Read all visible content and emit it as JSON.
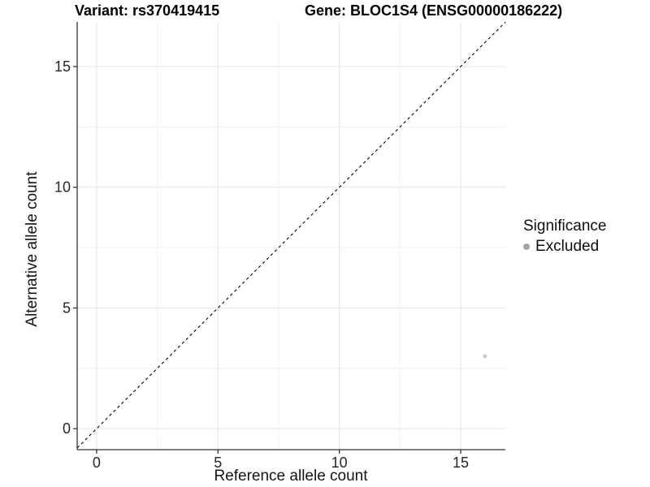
{
  "chart_data": {
    "type": "scatter",
    "title_variant": "Variant: rs370419415",
    "title_gene": "Gene: BLOC1S4 (ENSG00000186222)",
    "xlabel": "Reference allele count",
    "ylabel": "Alternative allele count",
    "xlim": [
      -0.8,
      16.84
    ],
    "ylim": [
      -0.87,
      16.85
    ],
    "x_ticks": [
      0,
      5,
      10,
      15
    ],
    "y_ticks": [
      0,
      5,
      10,
      15
    ],
    "x_minor_ticks": [
      2.5,
      7.5,
      12.5
    ],
    "y_minor_ticks": [
      2.5,
      7.5,
      12.5
    ],
    "grid": "major+minor",
    "identity_line": {
      "style": "dashed",
      "color": "#000000"
    },
    "series": [
      {
        "name": "Excluded",
        "color": "#c9c9c9",
        "point_radius": 2.5,
        "points": [
          {
            "x": 16,
            "y": 3
          }
        ]
      }
    ],
    "legend": {
      "position": "right",
      "title": "Significance",
      "items": [
        {
          "label": "Excluded",
          "color": "#a3a3a3"
        }
      ]
    },
    "colors": {
      "background": "#ffffff",
      "grid_major": "#e4e4e4",
      "grid_minor": "#f1f1f1",
      "axis_line": "#333333",
      "tick_label": "#262626",
      "title": "#000000"
    }
  }
}
